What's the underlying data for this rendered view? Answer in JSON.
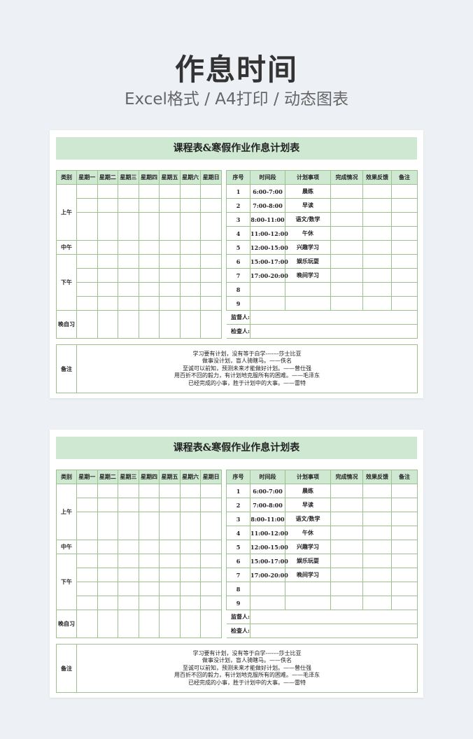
{
  "hero": {
    "title": "作息时间",
    "subtitle": "Excel格式 / A4打印 / 动态图表"
  },
  "sheet": {
    "title": "课程表&寒假作业作息计划表",
    "left_headers": [
      "类别",
      "星期一",
      "星期二",
      "星期三",
      "星期四",
      "星期五",
      "星期六",
      "星期日"
    ],
    "periods": {
      "morning": "上午",
      "noon": "中午",
      "afternoon": "下午",
      "evening": "晚自习"
    },
    "right_headers": [
      "序号",
      "时间段",
      "计划事项",
      "完成情况",
      "效果反馈",
      "备注"
    ],
    "plan_rows": [
      {
        "no": "1",
        "time": "6:00-7:00",
        "item": "晨练"
      },
      {
        "no": "2",
        "time": "7:00-8:00",
        "item": "早读"
      },
      {
        "no": "3",
        "time": "8:00-11:00",
        "item": "语文/数学"
      },
      {
        "no": "4",
        "time": "11:00-12:00",
        "item": "午休"
      },
      {
        "no": "5",
        "time": "12:00-15:00",
        "item": "兴趣学习"
      },
      {
        "no": "6",
        "time": "15:00-17:00",
        "item": "娱乐玩耍"
      },
      {
        "no": "7",
        "time": "17:00-20:00",
        "item": "晚间学习"
      },
      {
        "no": "8",
        "time": "",
        "item": ""
      },
      {
        "no": "9",
        "time": "",
        "item": ""
      }
    ],
    "supervisor_label": "监督人:",
    "checker_label": "检查人:",
    "notes_label": "备注",
    "quotes": [
      "学习要有计划，没有等于白学-------莎士比亚",
      "做事没计划，盲人骑瞎马。——佚名",
      "至诚可以前知，预测未来才能做好计划。——曾仕强",
      "用百折不回的毅力，有计划地克服所有的困难。——毛泽东",
      "已经完成的小事，胜于计划中的大事。——雷特"
    ]
  },
  "colors": {
    "header_fill": "#cfe8d2",
    "grid": "#9cc08e",
    "background": "#edf0f5"
  }
}
